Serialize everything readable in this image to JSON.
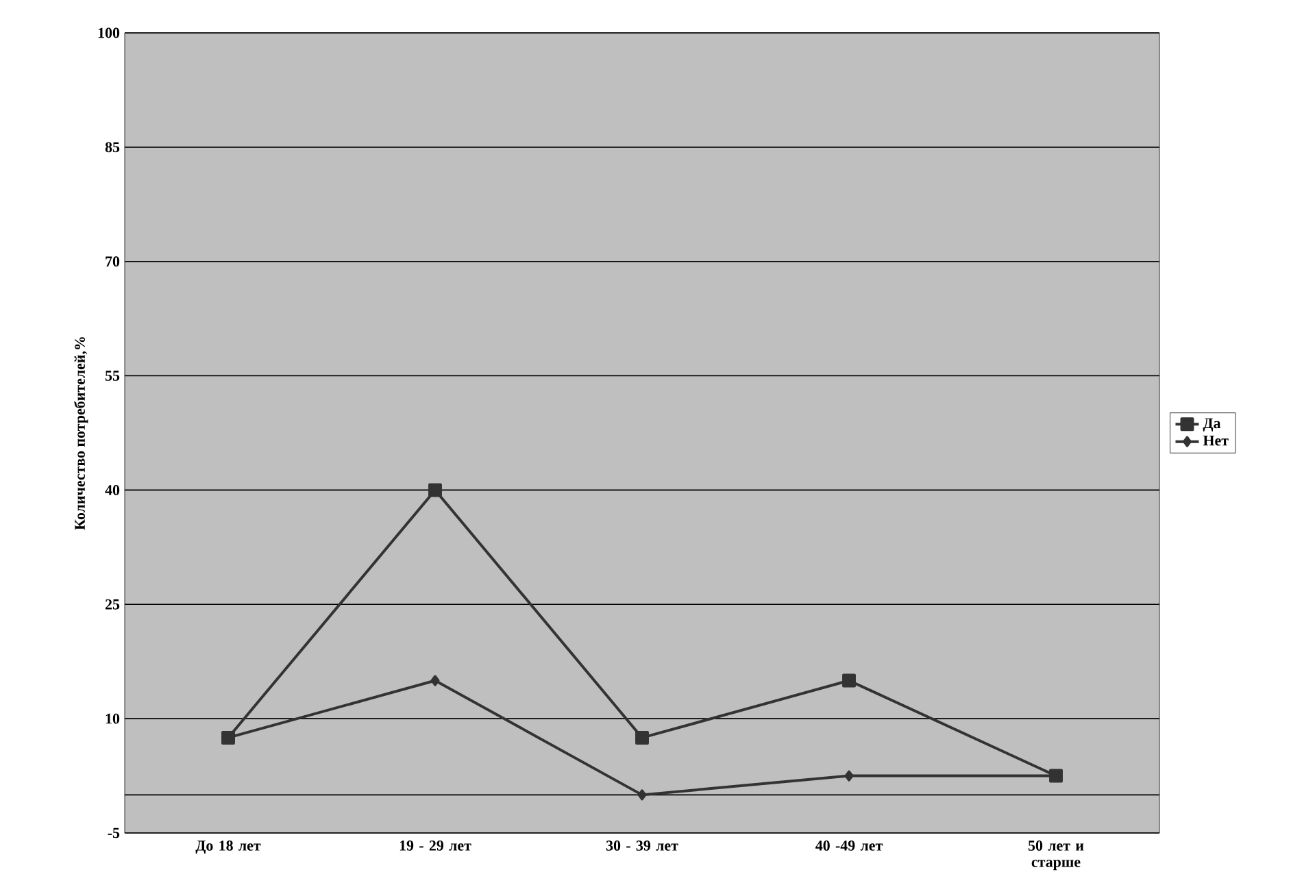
{
  "chart_data": {
    "type": "line",
    "ylabel": "Количество потребителей,%",
    "categories": [
      "До 18 лет",
      "19 - 29 лет",
      "30 - 39 лет",
      "40 -49 лет",
      "50 лет и старше"
    ],
    "series": [
      {
        "name": "Да",
        "color": "#333333",
        "marker": "square",
        "values": [
          7.5,
          40,
          7.5,
          15,
          2.5
        ]
      },
      {
        "name": "Нет",
        "color": "#333333",
        "marker": "diamond",
        "values": [
          7.5,
          15,
          0,
          2.5,
          2.5
        ]
      }
    ],
    "ylim": [
      -5,
      100
    ],
    "yticks": [
      -5,
      10,
      25,
      40,
      55,
      70,
      85,
      100
    ],
    "grid": "y",
    "legend": "right",
    "ref_lines": [
      {
        "axis": "y",
        "value": 0,
        "color": "#000000"
      }
    ]
  }
}
